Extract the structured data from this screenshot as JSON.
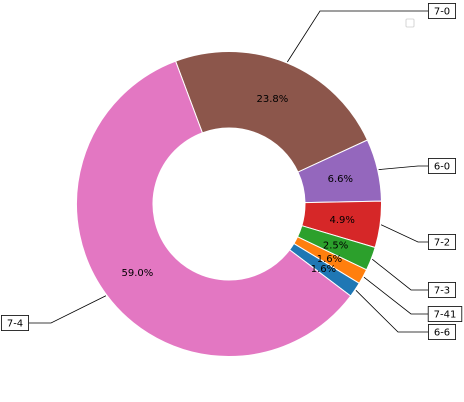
{
  "chart_data": {
    "type": "pie",
    "donut": true,
    "legend": "upper right, empty",
    "slices": [
      {
        "name": "7-0",
        "value": 23.8,
        "pct_label": "23.8%",
        "color": "#8c564b"
      },
      {
        "name": "6-0",
        "value": 6.6,
        "pct_label": "6.6%",
        "color": "#9467bd"
      },
      {
        "name": "7-2",
        "value": 4.9,
        "pct_label": "4.9%",
        "color": "#d62728"
      },
      {
        "name": "7-3",
        "value": 2.5,
        "pct_label": "2.5%",
        "color": "#2ca02c"
      },
      {
        "name": "7-41",
        "value": 1.6,
        "pct_label": "1.6%",
        "color": "#ff7f0e"
      },
      {
        "name": "6-6",
        "value": 1.6,
        "pct_label": "1.6%",
        "color": "#1f77b4"
      },
      {
        "name": "7-4",
        "value": 59.0,
        "pct_label": "59.0%",
        "color": "#e377c2"
      }
    ]
  }
}
